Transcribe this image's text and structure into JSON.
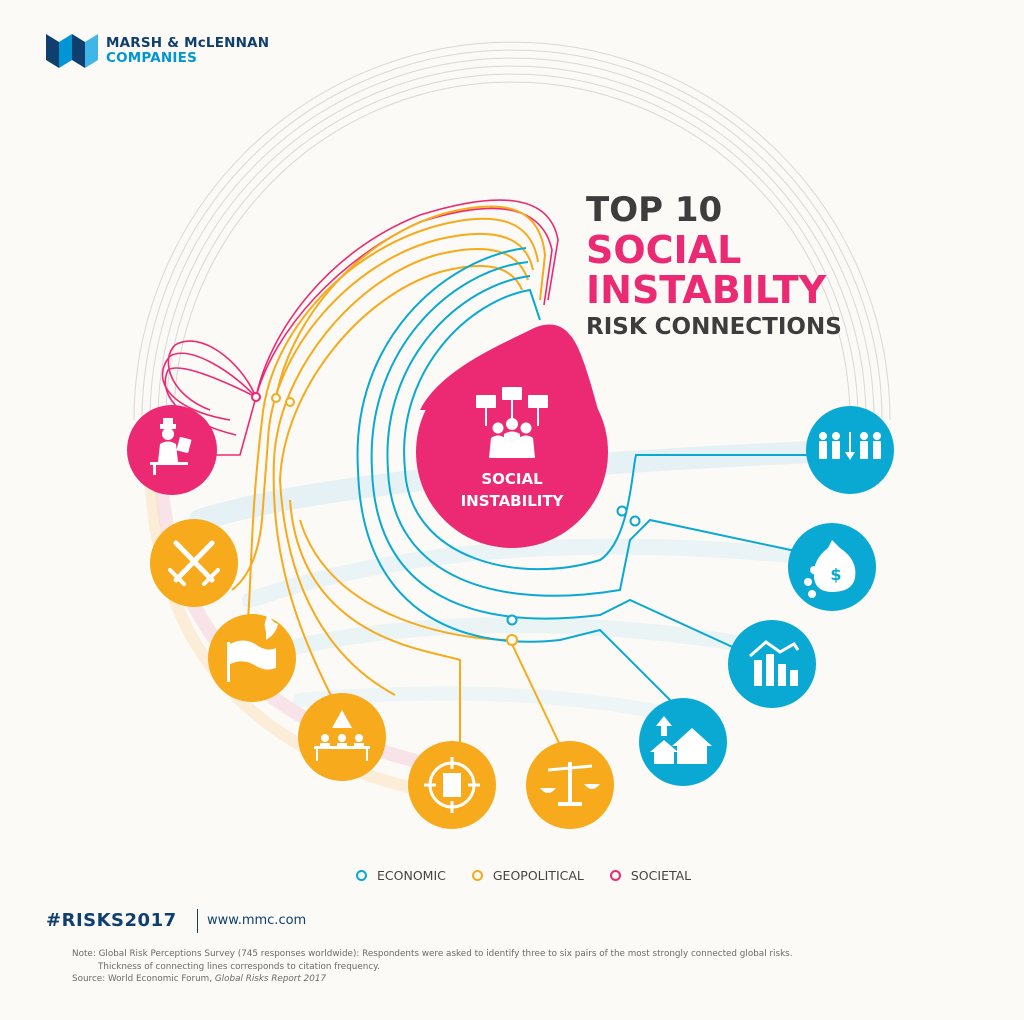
{
  "logo": {
    "line1": "MARSH & McLENNAN",
    "line2": "COMPANIES"
  },
  "title": {
    "line1": "TOP 10",
    "line2": "SOCIAL",
    "line3": "INSTABILTY",
    "line4": "RISK CONNECTIONS"
  },
  "center": {
    "line1": "SOCIAL",
    "line2": "INSTABILITY",
    "icon": "protest-crowd-icon"
  },
  "colors": {
    "economic": "#0aa9d4",
    "geopolitical": "#f7aa1b",
    "societal": "#ec2a73",
    "navy": "#0f3f6e"
  },
  "risks": [
    {
      "name": "profound-social-instability-icon",
      "category": "societal"
    },
    {
      "name": "interstate-conflict-icon",
      "category": "geopolitical"
    },
    {
      "name": "state-collapse-icon",
      "category": "geopolitical"
    },
    {
      "name": "failure-of-governance-icon",
      "category": "geopolitical"
    },
    {
      "name": "terrorist-attack-icon",
      "category": "geopolitical"
    },
    {
      "name": "failure-of-governance-scales-icon",
      "category": "geopolitical"
    },
    {
      "name": "housing-asset-bubble-icon",
      "category": "economic"
    },
    {
      "name": "deflation-chart-icon",
      "category": "economic"
    },
    {
      "name": "fiscal-crisis-moneybag-icon",
      "category": "economic"
    },
    {
      "name": "unemployment-people-icon",
      "category": "economic"
    }
  ],
  "legend": [
    {
      "label": "ECONOMIC",
      "color": "#0aa9d4"
    },
    {
      "label": "GEOPOLITICAL",
      "color": "#f7aa1b"
    },
    {
      "label": "SOCIETAL",
      "color": "#ec2a73"
    }
  ],
  "footer": {
    "hashtag": "#RISKS2017",
    "url": "www.mmc.com",
    "note1": "Note: Global Risk Perceptions Survey (745 responses worldwide): Respondents were asked to identify three to six pairs of the most strongly connected global risks.",
    "note2": "Thickness of connecting lines corresponds to citation frequency.",
    "source_prefix": "Source: World Economic Forum, ",
    "source_title": "Global Risks Report 2017"
  }
}
